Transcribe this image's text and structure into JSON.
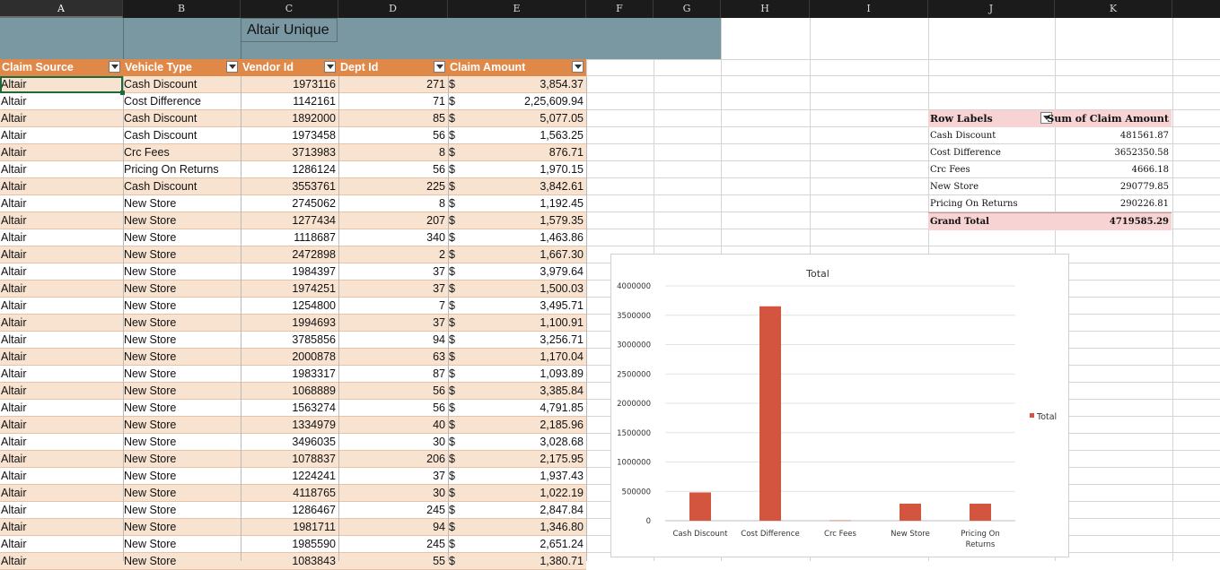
{
  "columns": [
    "A",
    "B",
    "C",
    "D",
    "E",
    "F",
    "G",
    "H",
    "I",
    "J",
    "K"
  ],
  "banner": {
    "title": "Altair Unique"
  },
  "table": {
    "headers": [
      "Claim Source",
      "Vehicle Type",
      "Vendor Id",
      "Dept Id",
      "Claim Amount"
    ],
    "rows": [
      [
        "Altair",
        "Cash Discount",
        "1973116",
        "271",
        "$",
        "3,854.37"
      ],
      [
        "Altair",
        "Cost Difference",
        "1142161",
        "71",
        "$",
        "2,25,609.94"
      ],
      [
        "Altair",
        "Cash Discount",
        "1892000",
        "85",
        "$",
        "5,077.05"
      ],
      [
        "Altair",
        "Cash Discount",
        "1973458",
        "56",
        "$",
        "1,563.25"
      ],
      [
        "Altair",
        "Crc Fees",
        "3713983",
        "8",
        "$",
        "876.71"
      ],
      [
        "Altair",
        "Pricing On Returns",
        "1286124",
        "56",
        "$",
        "1,970.15"
      ],
      [
        "Altair",
        "Cash Discount",
        "3553761",
        "225",
        "$",
        "3,842.61"
      ],
      [
        "Altair",
        "New Store",
        "2745062",
        "8",
        "$",
        "1,192.45"
      ],
      [
        "Altair",
        "New Store",
        "1277434",
        "207",
        "$",
        "1,579.35"
      ],
      [
        "Altair",
        "New Store",
        "1118687",
        "340",
        "$",
        "1,463.86"
      ],
      [
        "Altair",
        "New Store",
        "2472898",
        "2",
        "$",
        "1,667.30"
      ],
      [
        "Altair",
        "New Store",
        "1984397",
        "37",
        "$",
        "3,979.64"
      ],
      [
        "Altair",
        "New Store",
        "1974251",
        "37",
        "$",
        "1,500.03"
      ],
      [
        "Altair",
        "New Store",
        "1254800",
        "7",
        "$",
        "3,495.71"
      ],
      [
        "Altair",
        "New Store",
        "1994693",
        "37",
        "$",
        "1,100.91"
      ],
      [
        "Altair",
        "New Store",
        "3785856",
        "94",
        "$",
        "3,256.71"
      ],
      [
        "Altair",
        "New Store",
        "2000878",
        "63",
        "$",
        "1,170.04"
      ],
      [
        "Altair",
        "New Store",
        "1983317",
        "87",
        "$",
        "1,093.89"
      ],
      [
        "Altair",
        "New Store",
        "1068889",
        "56",
        "$",
        "3,385.84"
      ],
      [
        "Altair",
        "New Store",
        "1563274",
        "56",
        "$",
        "4,791.85"
      ],
      [
        "Altair",
        "New Store",
        "1334979",
        "40",
        "$",
        "2,185.96"
      ],
      [
        "Altair",
        "New Store",
        "3496035",
        "30",
        "$",
        "3,028.68"
      ],
      [
        "Altair",
        "New Store",
        "1078837",
        "206",
        "$",
        "2,175.95"
      ],
      [
        "Altair",
        "New Store",
        "1224241",
        "37",
        "$",
        "1,937.43"
      ],
      [
        "Altair",
        "New Store",
        "4118765",
        "30",
        "$",
        "1,022.19"
      ],
      [
        "Altair",
        "New Store",
        "1286467",
        "245",
        "$",
        "2,847.84"
      ],
      [
        "Altair",
        "New Store",
        "1981711",
        "94",
        "$",
        "1,346.80"
      ],
      [
        "Altair",
        "New Store",
        "1985590",
        "245",
        "$",
        "2,651.24"
      ],
      [
        "Altair",
        "New Store",
        "1083843",
        "55",
        "$",
        "1,380.71"
      ]
    ]
  },
  "pivot": {
    "header_labels": "Row Labels",
    "header_values": "Sum of Claim Amount",
    "rows": [
      [
        "Cash Discount",
        "481561.87"
      ],
      [
        "Cost Difference",
        "3652350.58"
      ],
      [
        "Crc Fees",
        "4666.18"
      ],
      [
        "New Store",
        "290779.85"
      ],
      [
        "Pricing On Returns",
        "290226.81"
      ]
    ],
    "total_label": "Grand Total",
    "total_value": "4719585.29"
  },
  "chart_data": {
    "type": "bar",
    "title": "Total",
    "categories": [
      "Cash Discount",
      "Cost Difference",
      "Crc Fees",
      "New Store",
      "Pricing On Returns"
    ],
    "series": [
      {
        "name": "Total",
        "values": [
          481561.87,
          3652350.58,
          4666.18,
          290779.85,
          290226.81
        ]
      }
    ],
    "yticks": [
      "4000000",
      "3500000",
      "3000000",
      "2500000",
      "2000000",
      "1500000",
      "1000000",
      "500000",
      "0"
    ],
    "ylim": [
      0,
      4000000
    ],
    "grid": true,
    "legend": "right",
    "bar_color": "#d3553f"
  }
}
